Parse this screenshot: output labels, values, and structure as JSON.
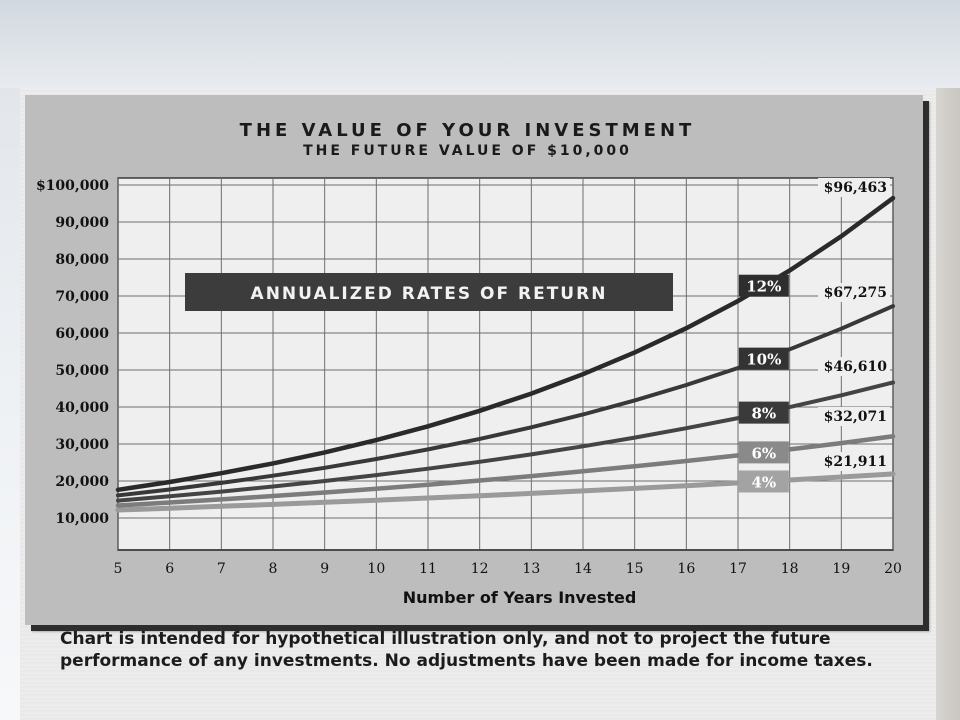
{
  "disclaimer": "Chart is intended for hypothetical illustration only, and not to project the future performance of any investments. No adjustments have been made for income taxes.",
  "chart_data": {
    "type": "line",
    "title": "THE VALUE OF YOUR INVESTMENT",
    "subtitle": "THE FUTURE VALUE OF $10,000",
    "xlabel": "Number of Years Invested",
    "ylabel": "",
    "banner": "ANNUALIZED RATES OF RETURN",
    "x": [
      5,
      6,
      7,
      8,
      9,
      10,
      11,
      12,
      13,
      14,
      15,
      16,
      17,
      18,
      19,
      20
    ],
    "xlim": [
      5,
      20
    ],
    "ylim": [
      0,
      100000
    ],
    "y_ticks": [
      10000,
      20000,
      30000,
      40000,
      50000,
      60000,
      70000,
      80000,
      90000,
      100000
    ],
    "y_tick_labels": [
      "10,000",
      "20,000",
      "30,000",
      "40,000",
      "50,000",
      "60,000",
      "70,000",
      "80,000",
      "90,000",
      "$100,000"
    ],
    "grid": true,
    "series": [
      {
        "name": "12%",
        "color": "#2a2a2a",
        "end_label": "$96,463",
        "values": [
          17623,
          19738,
          22107,
          24760,
          27731,
          31058,
          34785,
          38960,
          43635,
          48871,
          54736,
          61304,
          68660,
          76900,
          86128,
          96463
        ]
      },
      {
        "name": "10%",
        "color": "#383838",
        "end_label": "$67,275",
        "values": [
          16105,
          17716,
          19487,
          21436,
          23579,
          25937,
          28531,
          31384,
          34523,
          37975,
          41772,
          45950,
          50545,
          55599,
          61159,
          67275
        ]
      },
      {
        "name": "8%",
        "color": "#444444",
        "end_label": "$46,610",
        "values": [
          14693,
          15869,
          17138,
          18509,
          19990,
          21589,
          23316,
          25182,
          27196,
          29372,
          31722,
          34259,
          37000,
          39960,
          43157,
          46610
        ]
      },
      {
        "name": "6%",
        "color": "#7c7c7c",
        "end_label": "$32,071",
        "values": [
          13382,
          14185,
          15036,
          15938,
          16895,
          17908,
          18983,
          20122,
          21329,
          22609,
          23966,
          25404,
          26928,
          28543,
          30256,
          32071
        ]
      },
      {
        "name": "4%",
        "color": "#9a9a9a",
        "end_label": "$21,911",
        "values": [
          12167,
          12653,
          13159,
          13686,
          14233,
          14802,
          15395,
          16010,
          16651,
          17317,
          18009,
          18730,
          19479,
          20258,
          21068,
          21911
        ]
      }
    ]
  }
}
